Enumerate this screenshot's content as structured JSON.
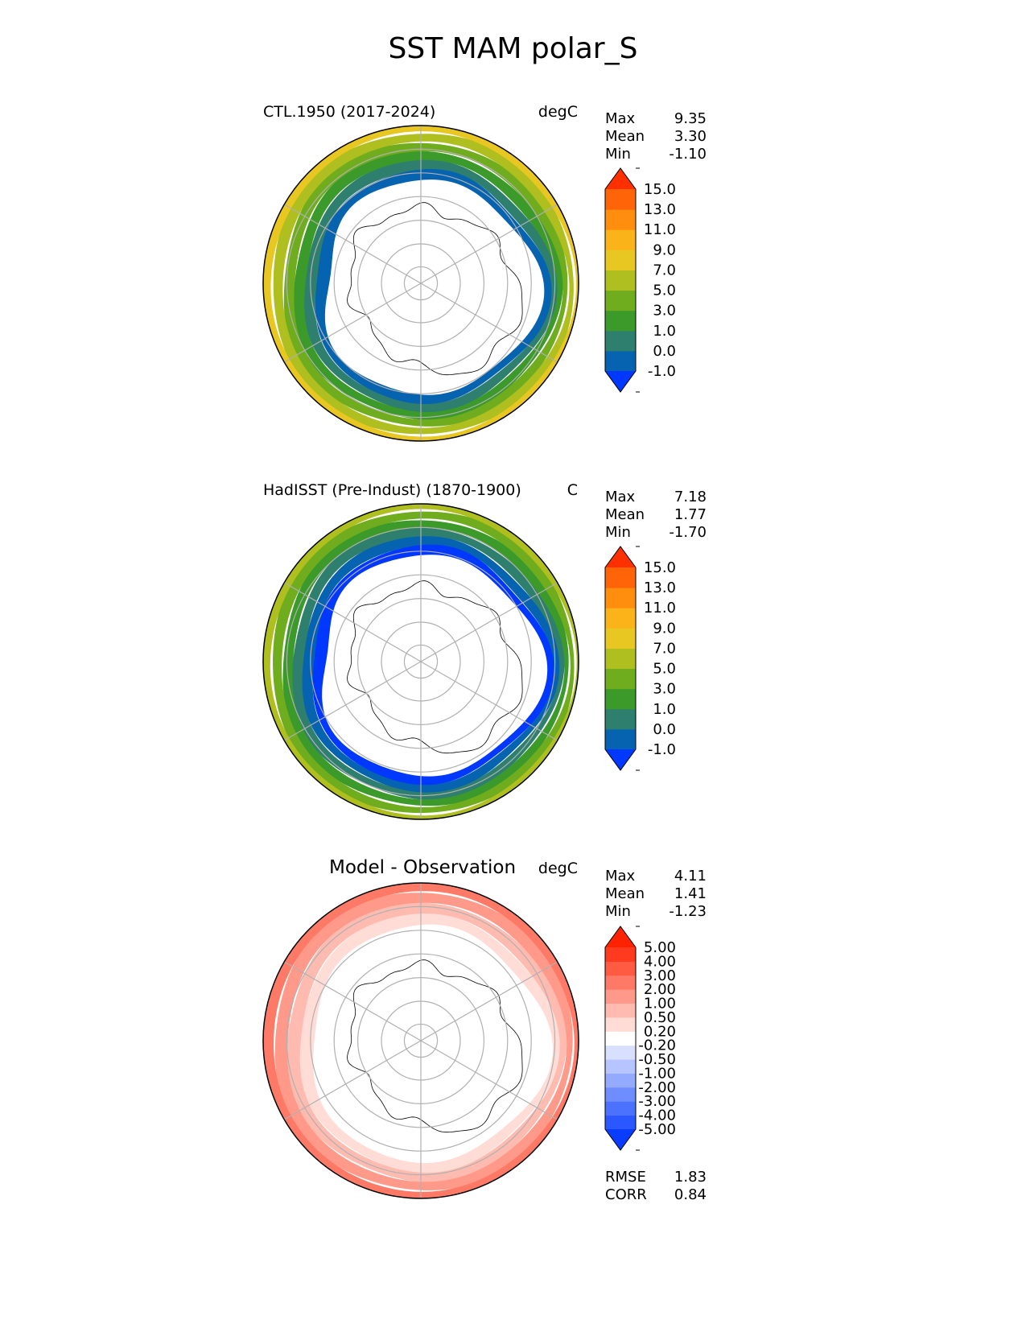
{
  "title": "SST MAM polar_S",
  "panels": [
    {
      "title": "CTL.1950 (2017-2024)",
      "units": "degC",
      "stats": [
        {
          "label": "Max",
          "value": "9.35"
        },
        {
          "label": "Mean",
          "value": "3.30"
        },
        {
          "label": "Min",
          "value": "-1.10"
        }
      ],
      "colorbar": {
        "levels": [
          "-1.0",
          "0.0",
          "1.0",
          "3.0",
          "5.0",
          "7.0",
          "9.0",
          "11.0",
          "13.0",
          "15.0"
        ],
        "colors": [
          "#0038ff",
          "#0563b0",
          "#2e7f6e",
          "#3b9a2a",
          "#6fad1e",
          "#aebf1f",
          "#e8c722",
          "#fbb31a",
          "#ff8e0e",
          "#ff6508",
          "#ff3000"
        ]
      }
    },
    {
      "title": "HadISST (Pre-Indust) (1870-1900)",
      "units": "C",
      "stats": [
        {
          "label": "Max",
          "value": "7.18"
        },
        {
          "label": "Mean",
          "value": "1.77"
        },
        {
          "label": "Min",
          "value": "-1.70"
        }
      ],
      "colorbar": {
        "levels": [
          "-1.0",
          "0.0",
          "1.0",
          "3.0",
          "5.0",
          "7.0",
          "9.0",
          "11.0",
          "13.0",
          "15.0"
        ],
        "colors": [
          "#0038ff",
          "#0563b0",
          "#2e7f6e",
          "#3b9a2a",
          "#6fad1e",
          "#aebf1f",
          "#e8c722",
          "#fbb31a",
          "#ff8e0e",
          "#ff6508",
          "#ff3000"
        ]
      }
    },
    {
      "title": "Model - Observation",
      "units": "degC",
      "stats": [
        {
          "label": "Max",
          "value": "4.11"
        },
        {
          "label": "Mean",
          "value": "1.41"
        },
        {
          "label": "Min",
          "value": "-1.23"
        }
      ],
      "colorbar": {
        "levels": [
          "-5.00",
          "-4.00",
          "-3.00",
          "-2.00",
          "-1.00",
          "-0.50",
          "-0.20",
          "0.20",
          "0.50",
          "1.00",
          "2.00",
          "3.00",
          "4.00",
          "5.00"
        ],
        "colors": [
          "#0a3cff",
          "#2a57ff",
          "#4a72ff",
          "#6e8dff",
          "#93aaff",
          "#b6c5ff",
          "#d9e0ff",
          "#ffffff",
          "#ffdcd6",
          "#ffbbb0",
          "#ff9a8a",
          "#ff7a66",
          "#ff5a42",
          "#ff3a1e",
          "#ff2200"
        ]
      },
      "extra_stats": [
        {
          "label": "RMSE",
          "value": "1.83"
        },
        {
          "label": "CORR",
          "value": "0.84"
        }
      ]
    }
  ],
  "chart_data": [
    {
      "type": "heatmap",
      "projection": "south polar stereographic",
      "title": "CTL.1950 (2017-2024)",
      "variable": "SST",
      "units": "degC",
      "max": 9.35,
      "mean": 3.3,
      "min": -1.1,
      "bands_from_coast": [
        {
          "value": -0.5,
          "color": "#0563b0"
        },
        {
          "value": 0.5,
          "color": "#2e7f6e"
        },
        {
          "value": 2.0,
          "color": "#3b9a2a"
        },
        {
          "value": 4.0,
          "color": "#6fad1e"
        },
        {
          "value": 6.0,
          "color": "#aebf1f"
        },
        {
          "value": 8.0,
          "color": "#e8c722"
        }
      ]
    },
    {
      "type": "heatmap",
      "projection": "south polar stereographic",
      "title": "HadISST (Pre-Indust) (1870-1900)",
      "variable": "SST",
      "units": "C",
      "max": 7.18,
      "mean": 1.77,
      "min": -1.7,
      "bands_from_coast": [
        {
          "value": -1.5,
          "color": "#0038ff"
        },
        {
          "value": -0.5,
          "color": "#0563b0"
        },
        {
          "value": 0.5,
          "color": "#2e7f6e"
        },
        {
          "value": 2.0,
          "color": "#3b9a2a"
        },
        {
          "value": 4.0,
          "color": "#6fad1e"
        },
        {
          "value": 6.0,
          "color": "#aebf1f"
        }
      ]
    },
    {
      "type": "heatmap",
      "projection": "south polar stereographic",
      "title": "Model - Observation",
      "variable": "SST difference",
      "units": "degC",
      "max": 4.11,
      "mean": 1.41,
      "min": -1.23,
      "rmse": 1.83,
      "corr": 0.84,
      "bands_from_coast": [
        {
          "value": 0.0,
          "color": "#ffffff"
        },
        {
          "value": 0.35,
          "color": "#ffdcd6"
        },
        {
          "value": 0.75,
          "color": "#ffbbb0"
        },
        {
          "value": 1.5,
          "color": "#ff9a8a"
        },
        {
          "value": 2.5,
          "color": "#ff7a66"
        }
      ]
    }
  ]
}
